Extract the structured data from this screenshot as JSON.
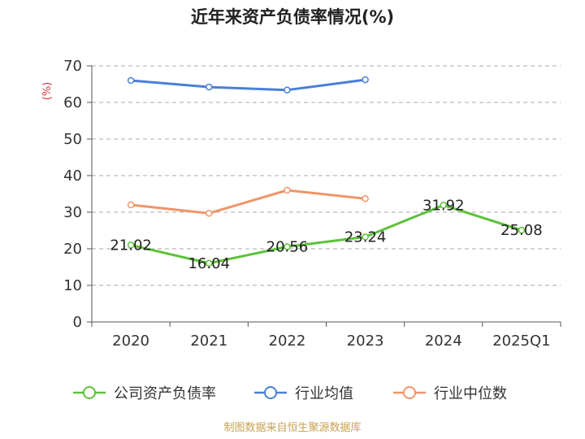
{
  "chart_data": {
    "type": "line",
    "title": "近年来资产负债率情况(%)",
    "ylabel": "(%)",
    "ylim": [
      0,
      70
    ],
    "yticks": [
      0,
      10,
      20,
      30,
      40,
      50,
      60,
      70
    ],
    "categories": [
      "2020",
      "2021",
      "2022",
      "2023",
      "2024",
      "2025Q1"
    ],
    "grid": true,
    "legend": "bottom",
    "series": [
      {
        "name": "公司资产负债率",
        "color": "#5cc23a",
        "values": [
          21.02,
          16.04,
          20.56,
          23.24,
          31.92,
          25.08
        ],
        "labels": [
          "21.02",
          "16.04",
          "20.56",
          "23.24",
          "31.92",
          "25.08"
        ]
      },
      {
        "name": "行业均值",
        "color": "#4a7fd6",
        "values": [
          66.0,
          64.2,
          63.4,
          66.2,
          null,
          null
        ]
      },
      {
        "name": "行业中位数",
        "color": "#f0956a",
        "values": [
          32.0,
          29.7,
          36.0,
          33.7,
          null,
          null
        ]
      }
    ],
    "source": "制图数据来自恒生聚源数据库"
  }
}
